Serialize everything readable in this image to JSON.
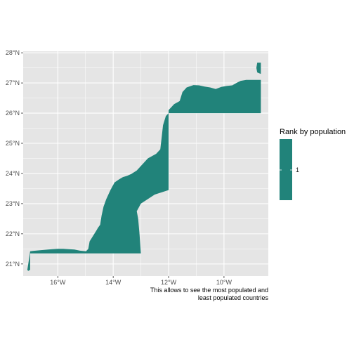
{
  "chart_data": {
    "type": "choropleth-map",
    "region": "Western Sahara",
    "fill_variable": "Rank by population",
    "fill_color": "#21837A",
    "panel_background": "#E5E5E5",
    "grid": true,
    "legend_position": "right",
    "x_axis": {
      "ticks": [
        -16,
        -14,
        -12,
        -10
      ],
      "tick_labels": [
        "16°W",
        "14°W",
        "12°W",
        "10°W"
      ],
      "range": [
        -17.25,
        -8.4
      ]
    },
    "y_axis": {
      "ticks": [
        21,
        22,
        23,
        24,
        25,
        26,
        27,
        28
      ],
      "tick_labels": [
        "21°N",
        "22°N",
        "23°N",
        "24°N",
        "25°N",
        "26°N",
        "27°N",
        "28°N"
      ],
      "range": [
        20.6,
        28.05
      ]
    },
    "legend": {
      "title": "Rank by population",
      "value_label": "1"
    },
    "caption_lines": [
      "This allows to see the most populated and",
      "least populated countries"
    ],
    "boundary": [
      [
        -8.67,
        27.67
      ],
      [
        -8.8,
        27.67
      ],
      [
        -8.83,
        27.5
      ],
      [
        -8.8,
        27.35
      ],
      [
        -8.67,
        27.3
      ],
      [
        -8.67,
        26.0
      ],
      [
        -12.0,
        26.0
      ],
      [
        -12.1,
        25.9
      ],
      [
        -12.2,
        25.6
      ],
      [
        -12.25,
        25.2
      ],
      [
        -12.3,
        24.8
      ],
      [
        -12.45,
        24.65
      ],
      [
        -12.75,
        24.5
      ],
      [
        -12.95,
        24.3
      ],
      [
        -13.15,
        24.1
      ],
      [
        -13.35,
        23.98
      ],
      [
        -13.5,
        23.92
      ],
      [
        -13.65,
        23.88
      ],
      [
        -13.8,
        23.8
      ],
      [
        -13.95,
        23.7
      ],
      [
        -14.1,
        23.45
      ],
      [
        -14.25,
        23.15
      ],
      [
        -14.35,
        22.9
      ],
      [
        -14.42,
        22.6
      ],
      [
        -14.47,
        22.3
      ],
      [
        -14.55,
        22.2
      ],
      [
        -14.6,
        22.12
      ],
      [
        -14.75,
        21.9
      ],
      [
        -14.85,
        21.75
      ],
      [
        -14.9,
        21.5
      ],
      [
        -14.98,
        21.42
      ],
      [
        -15.2,
        21.44
      ],
      [
        -15.4,
        21.48
      ],
      [
        -15.6,
        21.49
      ],
      [
        -15.8,
        21.5
      ],
      [
        -16.0,
        21.5
      ],
      [
        -16.2,
        21.49
      ],
      [
        -16.6,
        21.46
      ],
      [
        -16.9,
        21.43
      ],
      [
        -17.0,
        21.42
      ],
      [
        -17.05,
        21.1
      ],
      [
        -17.1,
        20.8
      ],
      [
        -17.06,
        20.77
      ],
      [
        -17.02,
        20.8
      ],
      [
        -17.0,
        20.8
      ],
      [
        -17.0,
        21.35
      ],
      [
        -13.0,
        21.35
      ],
      [
        -13.05,
        22.0
      ],
      [
        -13.1,
        22.5
      ],
      [
        -13.15,
        22.75
      ],
      [
        -13.0,
        23.0
      ],
      [
        -12.5,
        23.3
      ],
      [
        -12.0,
        23.45
      ],
      [
        -12.0,
        26.1
      ],
      [
        -11.9,
        26.2
      ],
      [
        -11.8,
        26.3
      ],
      [
        -11.6,
        26.4
      ],
      [
        -11.5,
        26.7
      ],
      [
        -11.4,
        26.8
      ],
      [
        -11.35,
        26.85
      ],
      [
        -11.1,
        26.93
      ],
      [
        -10.9,
        26.92
      ],
      [
        -10.7,
        26.88
      ],
      [
        -10.5,
        26.85
      ],
      [
        -10.3,
        26.8
      ],
      [
        -10.1,
        26.87
      ],
      [
        -9.9,
        26.9
      ],
      [
        -9.7,
        26.92
      ],
      [
        -9.55,
        27.0
      ],
      [
        -9.4,
        27.07
      ],
      [
        -9.2,
        27.1
      ],
      [
        -9.0,
        27.1
      ],
      [
        -8.67,
        27.1
      ],
      [
        -8.67,
        27.67
      ]
    ]
  }
}
